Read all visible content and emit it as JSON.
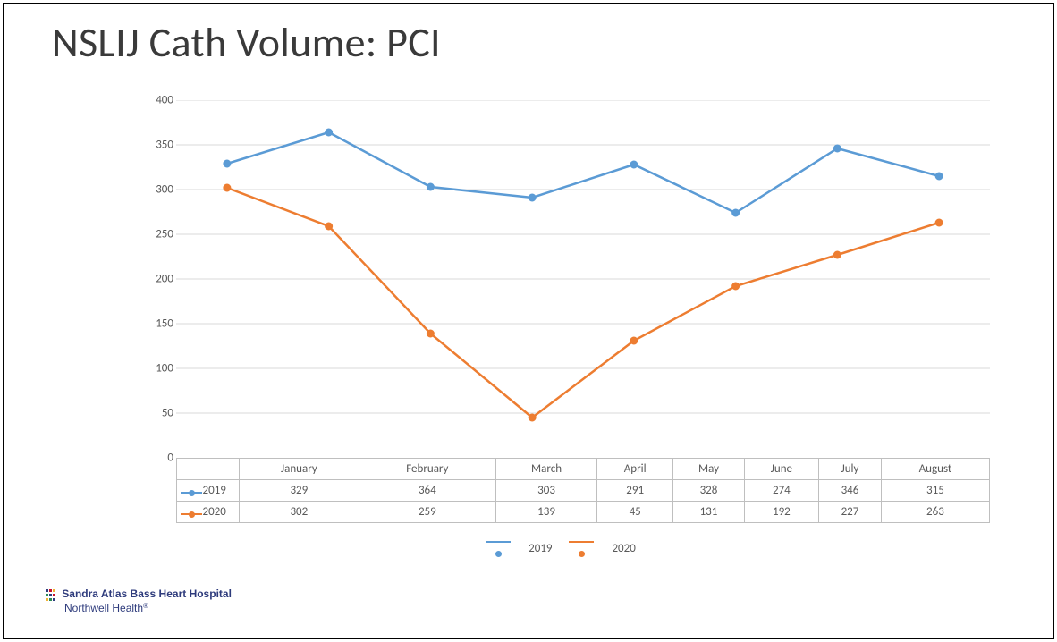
{
  "title": "NSLIJ Cath Volume:  PCI",
  "chart": {
    "type": "line",
    "categories": [
      "January",
      "February",
      "March",
      "April",
      "May",
      "June",
      "July",
      "August"
    ],
    "series": [
      {
        "name": "2019",
        "color": "#5b9bd5",
        "values": [
          329,
          364,
          303,
          291,
          328,
          274,
          346,
          315
        ]
      },
      {
        "name": "2020",
        "color": "#ed7d31",
        "values": [
          302,
          259,
          139,
          45,
          131,
          192,
          227,
          263
        ]
      }
    ],
    "yaxis": {
      "min": 0,
      "max": 400,
      "step": 50
    },
    "line_width": 2.5,
    "marker_radius": 4,
    "grid_color": "#d9d9d9",
    "border_color": "#bfbfbf",
    "tick_label_color": "#595959",
    "tick_label_fontsize": 13,
    "background": "#ffffff",
    "title_fontsize": 46,
    "title_color": "#3a3a3a"
  },
  "footer": {
    "line1": "Sandra Atlas Bass Heart Hospital",
    "line2": "Northwell Health",
    "logo_colors": [
      "#2e3b7c",
      "#c8102e",
      "#f1b434",
      "#2e8b57",
      "#2e3b7c",
      "#c8102e",
      "#f1b434",
      "#2e8b57",
      "#2e3b7c"
    ]
  },
  "legend": {
    "label_2019": "2019",
    "label_2020": "2020"
  }
}
